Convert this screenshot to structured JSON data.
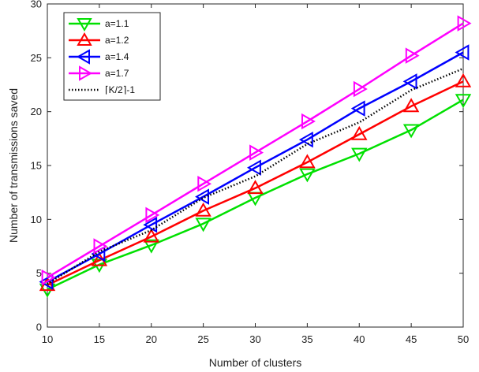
{
  "chart_data": {
    "type": "line",
    "xlabel": "Number of clusters",
    "ylabel": "Number of transmissions saved",
    "xlim": [
      10,
      50
    ],
    "ylim": [
      0,
      30
    ],
    "xticks": [
      10,
      15,
      20,
      25,
      30,
      35,
      40,
      45,
      50
    ],
    "yticks": [
      0,
      5,
      10,
      15,
      20,
      25,
      30
    ],
    "grid": false,
    "legend_position": "top-left",
    "x": [
      10,
      15,
      20,
      25,
      30,
      35,
      40,
      45,
      50
    ],
    "series": [
      {
        "name": "a=1.1",
        "color": "#00e000",
        "marker": "triangle-down",
        "values": [
          3.5,
          5.8,
          7.6,
          9.6,
          12.0,
          14.2,
          16.1,
          18.3,
          21.1
        ]
      },
      {
        "name": "a=1.2",
        "color": "#ff0000",
        "marker": "triangle-up",
        "values": [
          3.9,
          6.2,
          8.4,
          10.8,
          12.9,
          15.3,
          17.9,
          20.5,
          22.8
        ]
      },
      {
        "name": "a=1.4",
        "color": "#0000ff",
        "marker": "triangle-left",
        "values": [
          4.2,
          6.8,
          9.5,
          12.1,
          14.8,
          17.4,
          20.3,
          22.8,
          25.5
        ]
      },
      {
        "name": "a=1.7",
        "color": "#ff00ff",
        "marker": "triangle-right",
        "values": [
          4.6,
          7.5,
          10.4,
          13.3,
          16.2,
          19.1,
          22.1,
          25.2,
          28.2
        ]
      },
      {
        "name": "⌈K/2⌉-1",
        "color": "#000000",
        "marker": "none",
        "dash": "dotted",
        "values": [
          4.0,
          7.0,
          9.0,
          12.0,
          14.0,
          17.0,
          19.0,
          22.0,
          24.0
        ]
      }
    ]
  }
}
